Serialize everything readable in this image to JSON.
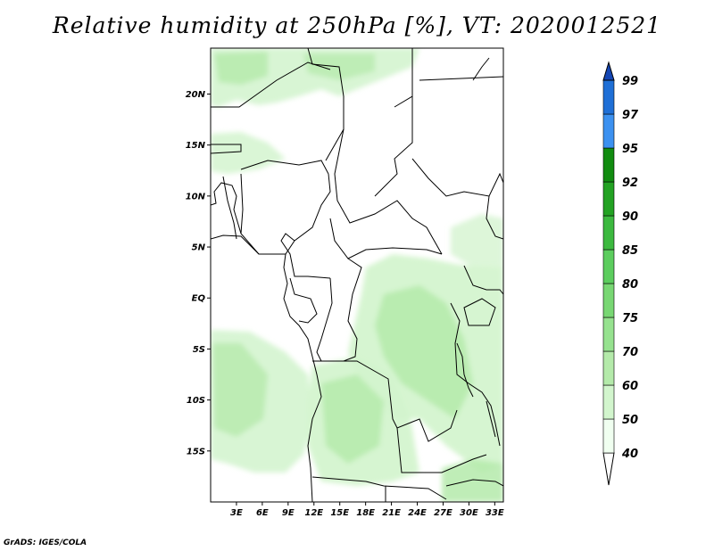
{
  "title": "Relative humidity at 250hPa [%], VT: 2020012521",
  "credit": "GrADS: IGES/COLA",
  "map": {
    "lat_ticks": [
      "20N",
      "15N",
      "10N",
      "5N",
      "EQ",
      "5S",
      "10S",
      "15S"
    ],
    "lat_values": [
      20,
      15,
      10,
      5,
      0,
      -5,
      -10,
      -15
    ],
    "lon_ticks": [
      "3E",
      "6E",
      "9E",
      "12E",
      "15E",
      "18E",
      "21E",
      "24E",
      "27E",
      "30E",
      "33E"
    ],
    "lon_values": [
      3,
      6,
      9,
      12,
      15,
      18,
      21,
      24,
      27,
      30,
      33
    ],
    "lon_range": [
      0,
      34
    ],
    "lat_range": [
      -20,
      24.5
    ]
  },
  "colorbar": {
    "labels": [
      "40",
      "50",
      "60",
      "70",
      "75",
      "80",
      "85",
      "90",
      "92",
      "95",
      "97",
      "99"
    ],
    "colors": [
      "#f0fff0",
      "#d2f5cd",
      "#b4eaaa",
      "#96e28f",
      "#78d773",
      "#5ccd5e",
      "#3cb93f",
      "#23a223",
      "#118c10",
      "#3c91f0",
      "#1f6fd6",
      "#1446b4"
    ]
  },
  "colors": {
    "light_green": "#d4f4cf",
    "mid_green": "#b4eaaa",
    "very_light_green": "#eefcee"
  }
}
